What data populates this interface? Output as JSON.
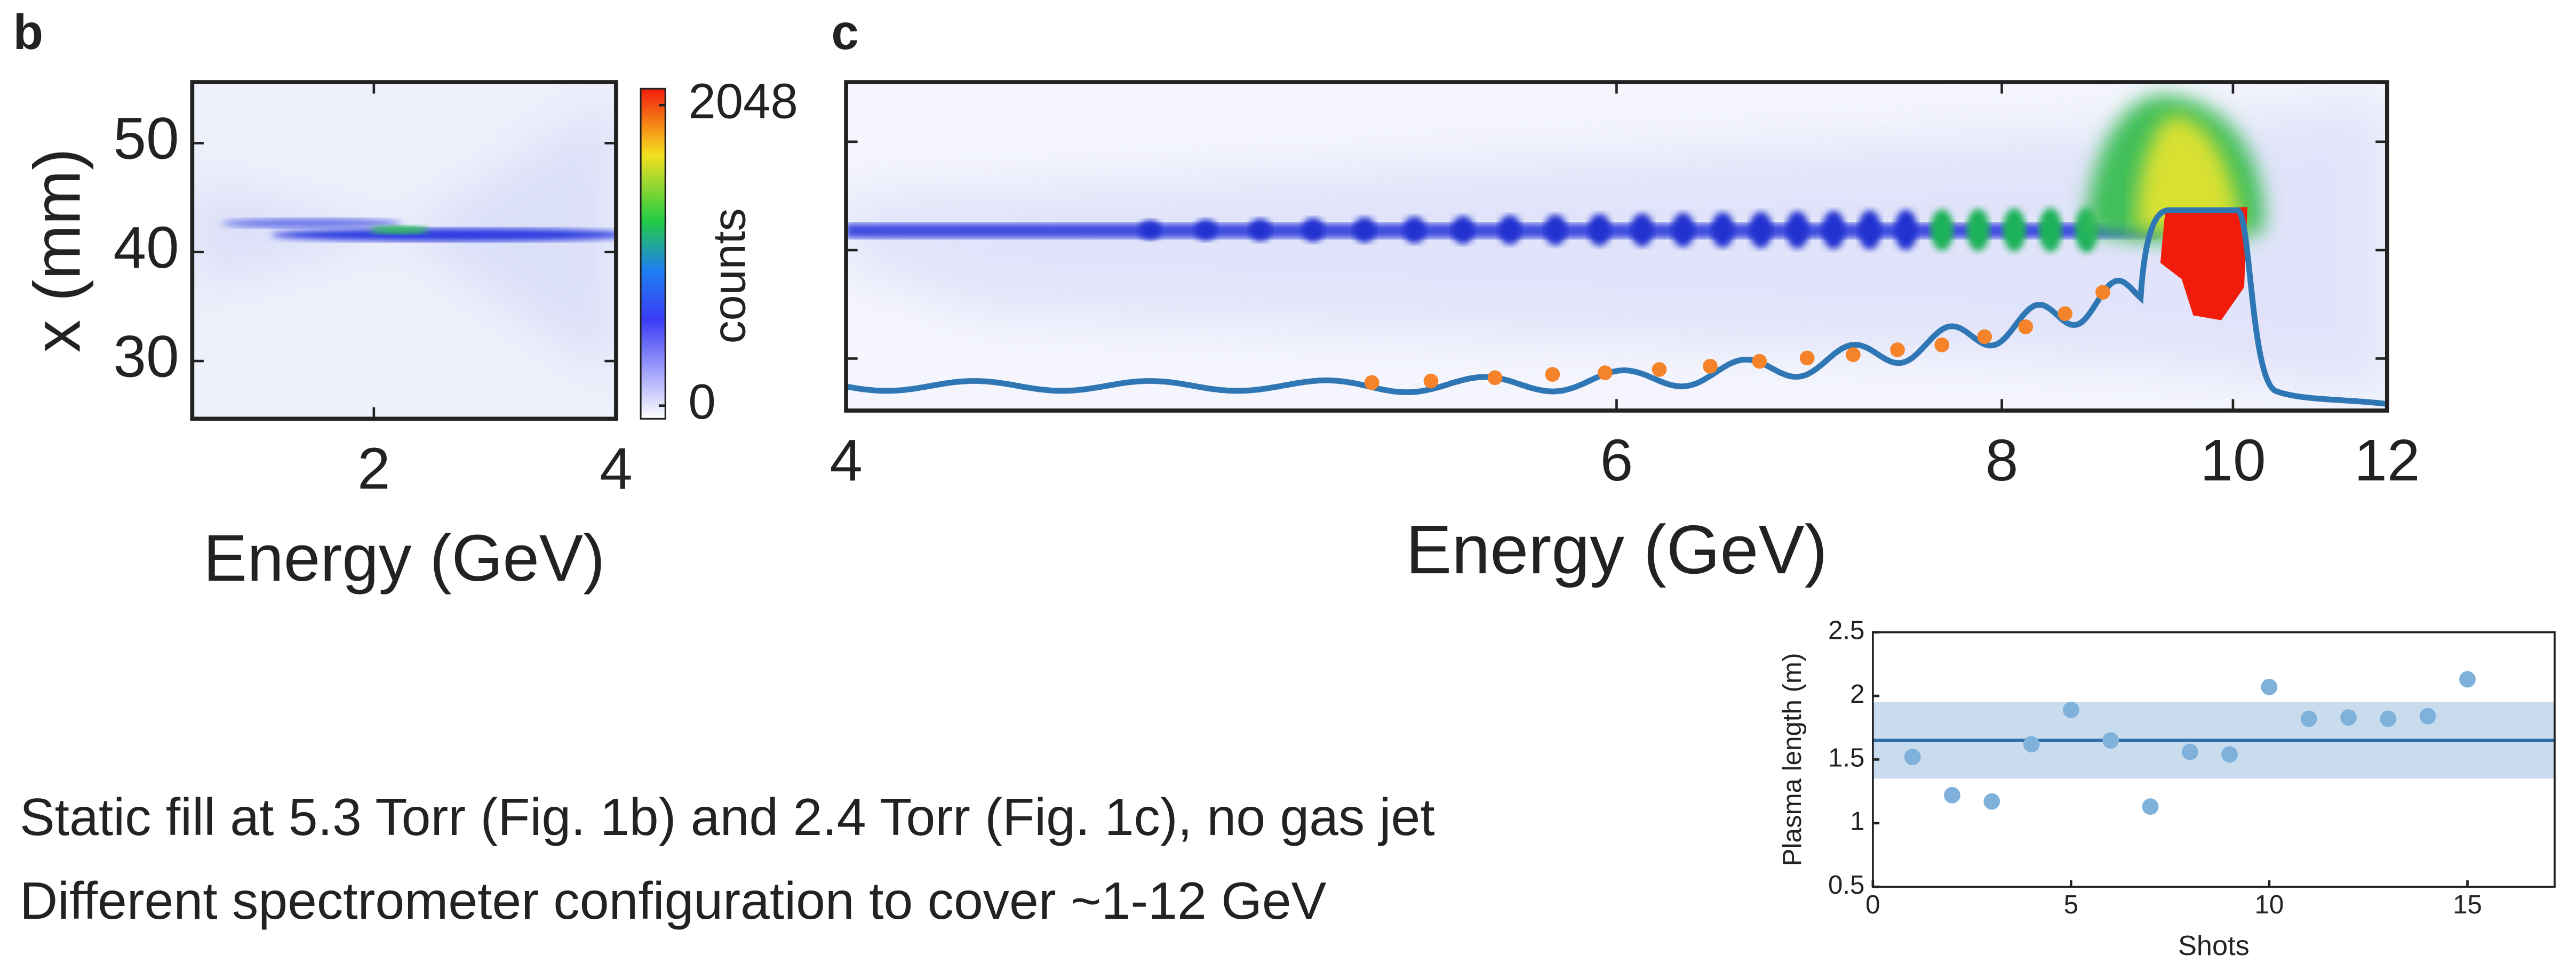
{
  "chart_data": [
    {
      "type": "heatmap",
      "panel": "b",
      "x_label": "Energy (GeV)",
      "y_label": "x (mm)",
      "xlim": [
        0.5,
        4
      ],
      "xticks": [
        2,
        4
      ],
      "ylim": [
        24.7,
        55.6
      ],
      "yticks": [
        30,
        40,
        50
      ],
      "ytick_labels": true,
      "colorbar": {
        "label": "counts",
        "lim": [
          0,
          2048
        ],
        "ticks": [
          0,
          2048
        ]
      }
    },
    {
      "type": "heatmap",
      "panel": "c",
      "x_label": "Energy (GeV)",
      "x_scale": "reciprocal",
      "xlim": [
        4,
        12
      ],
      "xticks": [
        4,
        6,
        8,
        10,
        12
      ],
      "ylim": [
        25.2,
        55.5
      ],
      "yticks": [
        30,
        40,
        50
      ],
      "ytick_labels": false
    },
    {
      "type": "scatter",
      "x_label": "Shots",
      "y_label": "Plasma length (m)",
      "x": [
        1,
        2,
        3,
        4,
        5,
        6,
        7,
        8,
        9,
        10,
        11,
        12,
        13,
        14,
        15
      ],
      "values": [
        1.52,
        1.22,
        1.17,
        1.62,
        1.89,
        1.65,
        1.13,
        1.56,
        1.54,
        2.07,
        1.82,
        1.83,
        1.82,
        1.84,
        2.13
      ],
      "mean": 1.65,
      "band": [
        1.35,
        1.95
      ],
      "xlim": [
        0,
        17.2
      ],
      "xticks": [
        0,
        5,
        10,
        15
      ],
      "ylim": [
        0.5,
        2.5
      ],
      "yticks": [
        0.5,
        1,
        1.5,
        2,
        2.5
      ],
      "color": "#7fb1da",
      "line_color": "#2d6ea8",
      "band_color": "#c8dcee"
    }
  ],
  "notes": [
    "Static fill at 5.3 Torr (Fig. 1b) and 2.4 Torr (Fig. 1c), no gas jet",
    "Different spectrometer configuration to cover ~1-12 GeV"
  ]
}
